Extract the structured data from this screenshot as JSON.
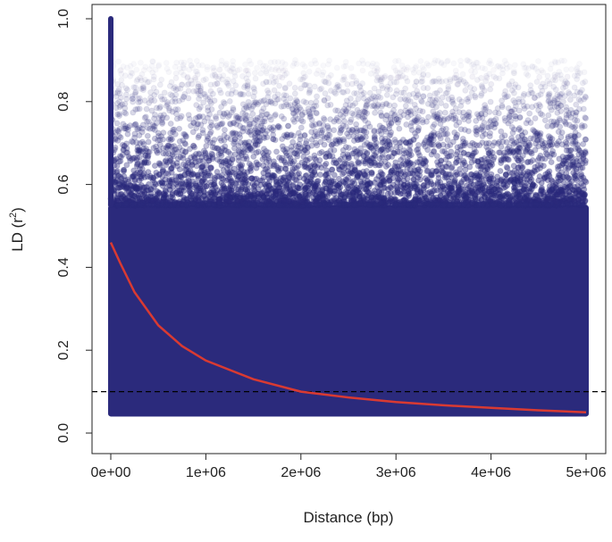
{
  "chart_data": {
    "type": "scatter",
    "title": "",
    "xlabel": "Distance (bp)",
    "ylabel_main": "LD (r",
    "ylabel_sup": "2",
    "ylabel_close": ")",
    "xlim": [
      0,
      5000000
    ],
    "ylim": [
      0,
      1
    ],
    "x_ticks": [
      0,
      1000000,
      2000000,
      3000000,
      4000000,
      5000000
    ],
    "x_tick_labels": [
      "0e+00",
      "1e+06",
      "2e+06",
      "3e+06",
      "4e+06",
      "5e+06"
    ],
    "y_ticks": [
      0,
      0.2,
      0.4,
      0.6,
      0.8,
      1.0
    ],
    "y_tick_labels": [
      "0.0",
      "0.2",
      "0.4",
      "0.6",
      "0.8",
      "1.0"
    ],
    "points": {
      "color": "#2b2a7c",
      "dense_range": [
        0.04,
        0.55
      ],
      "sparse_max": 0.9,
      "max_at_zero_distance": 1.0
    },
    "threshold_line": {
      "y": 0.1,
      "style": "dashed",
      "color": "#000000"
    },
    "decay_curve": {
      "color": "#d93a32",
      "x": [
        0,
        100000,
        250000,
        500000,
        750000,
        1000000,
        1500000,
        2000000,
        2500000,
        3000000,
        3500000,
        4000000,
        4500000,
        5000000
      ],
      "y": [
        0.46,
        0.41,
        0.34,
        0.26,
        0.21,
        0.175,
        0.13,
        0.1,
        0.086,
        0.075,
        0.067,
        0.061,
        0.055,
        0.05
      ]
    }
  }
}
